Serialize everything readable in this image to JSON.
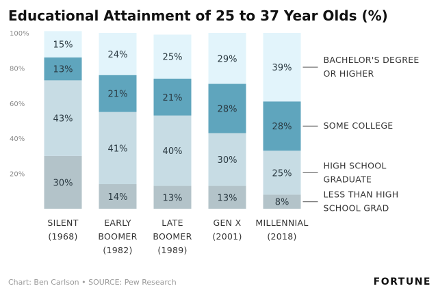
{
  "chart_data": {
    "type": "bar",
    "stacked": true,
    "title": "Educational Attainment of 25 to 37 Year Olds (%)",
    "categories": [
      [
        "SILENT",
        "(1968)"
      ],
      [
        "EARLY",
        "BOOMER",
        "(1982)"
      ],
      [
        "LATE",
        "BOOMER",
        "(1989)"
      ],
      [
        "GEN X",
        "(2001)"
      ],
      [
        "MILLENNIAL",
        "(2018)"
      ]
    ],
    "yticks": [
      "20%",
      "40%",
      "60%",
      "80%",
      "100%"
    ],
    "ytick_values": [
      20,
      40,
      60,
      80,
      100
    ],
    "ylim": [
      0,
      100
    ],
    "series": [
      {
        "name": [
          "LESS THAN HIGH",
          "SCHOOL GRAD"
        ],
        "values": [
          30,
          14,
          13,
          13,
          8
        ],
        "labels": [
          "30%",
          "14%",
          "13%",
          "13%",
          "8%"
        ],
        "color": "#b3c3c9"
      },
      {
        "name": [
          "HIGH SCHOOL",
          "GRADUATE"
        ],
        "values": [
          43,
          41,
          40,
          30,
          25
        ],
        "labels": [
          "43%",
          "41%",
          "40%",
          "30%",
          "25%"
        ],
        "color": "#c7dce4"
      },
      {
        "name": [
          "SOME COLLEGE"
        ],
        "values": [
          13,
          21,
          21,
          28,
          28
        ],
        "labels": [
          "13%",
          "21%",
          "21%",
          "28%",
          "28%"
        ],
        "color": "#5fa5bd"
      },
      {
        "name": [
          "BACHELOR'S DEGREE",
          "OR HIGHER"
        ],
        "values": [
          15,
          24,
          25,
          29,
          39
        ],
        "labels": [
          "15%",
          "24%",
          "25%",
          "29%",
          "39%"
        ],
        "color": "#e2f4fb"
      }
    ],
    "grid": false,
    "legend": "right"
  },
  "footer": {
    "credit": "Chart: Ben Carlson • SOURCE: Pew Research",
    "brand": "FORTUNE"
  }
}
